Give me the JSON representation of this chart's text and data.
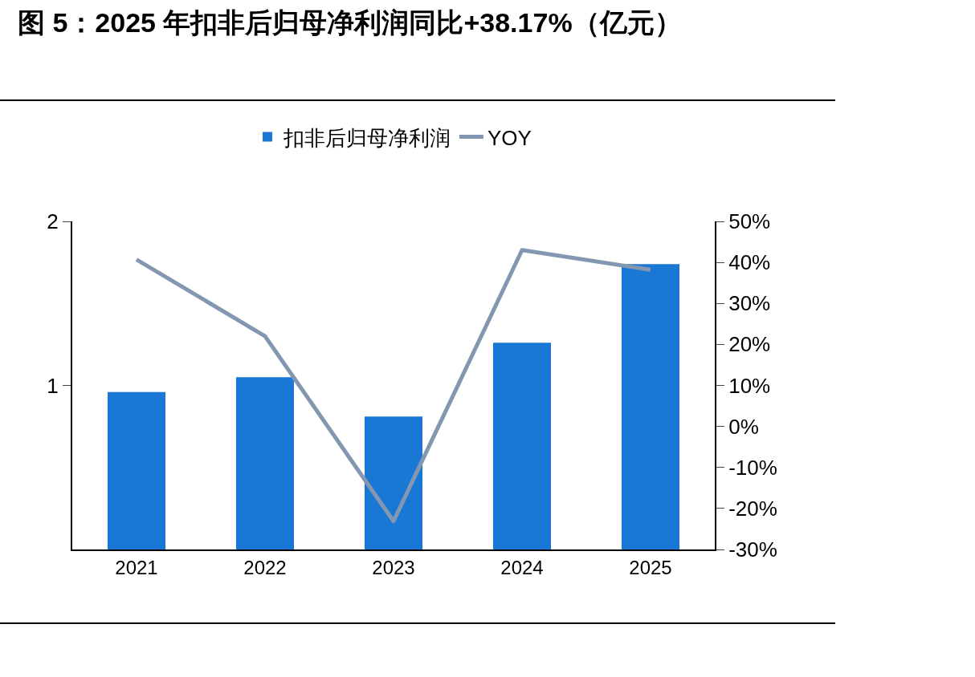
{
  "chart_data": {
    "type": "bar",
    "title": "图 5：2025 年扣非后归母净利润同比+38.17%（亿元）",
    "categories": [
      "2021",
      "2022",
      "2023",
      "2024",
      "2025"
    ],
    "series": [
      {
        "name": "扣非后归母净利润",
        "color": "#1878d4",
        "values": [
          0.96,
          1.05,
          0.81,
          1.26,
          1.74
        ]
      },
      {
        "name": "YOY",
        "type": "line",
        "axis": "y2",
        "color": "#8497b0",
        "values": [
          40.7,
          22.0,
          -23.1,
          43.0,
          38.2
        ]
      }
    ],
    "ylim": [
      0,
      2
    ],
    "yticks": [
      1,
      2
    ],
    "y2lim": [
      -30,
      50
    ],
    "y2ticks": [
      {
        "value": -30,
        "label": "-30%"
      },
      {
        "value": -20,
        "label": "-20%"
      },
      {
        "value": -10,
        "label": "-10%"
      },
      {
        "value": 0,
        "label": "0%"
      },
      {
        "value": 10,
        "label": "10%"
      },
      {
        "value": 20,
        "label": "20%"
      },
      {
        "value": 30,
        "label": "30%"
      },
      {
        "value": 40,
        "label": "40%"
      },
      {
        "value": 50,
        "label": "50%"
      }
    ],
    "legend": "top"
  }
}
